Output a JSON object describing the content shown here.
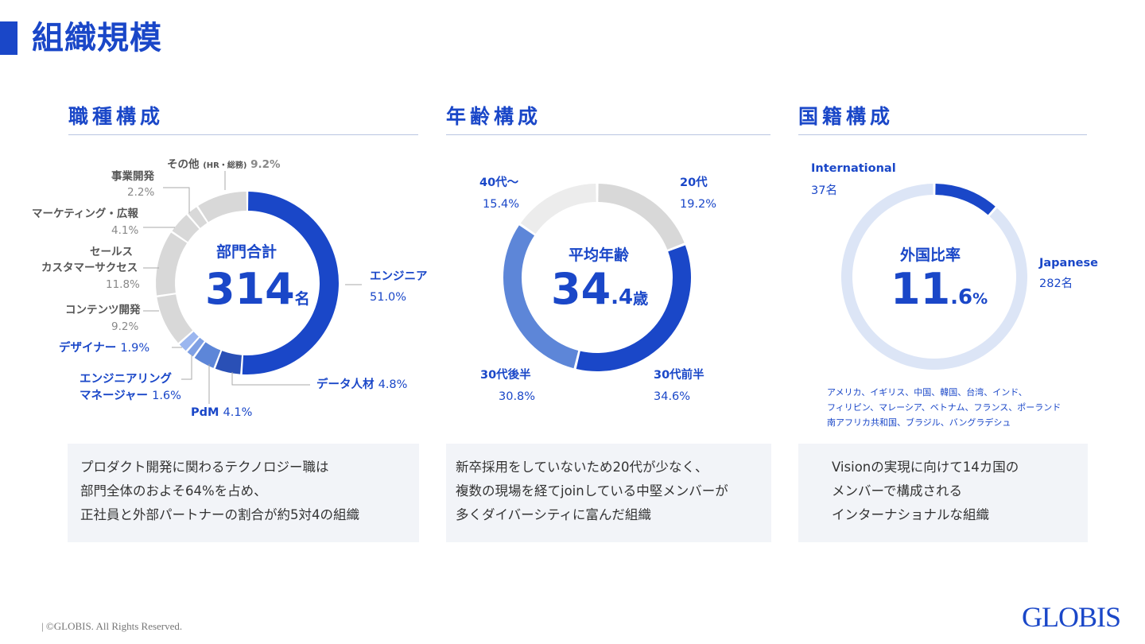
{
  "page": {
    "title": "組織規模",
    "copyright": "©GLOBIS. All Rights Reserved.",
    "logo": "GLOBIS"
  },
  "colors": {
    "primary": "#1a47c8",
    "dark_blue": "#2a50b6",
    "mid_blue": "#5d86d8",
    "light_blue": "#9bb6ef",
    "pale_blue": "#dce5f6",
    "gray": "#d8d8d8",
    "light_gray": "#ececec",
    "box_bg": "#f2f4f8"
  },
  "sections": {
    "job": {
      "heading": "職種構成",
      "center_label": "部門合計",
      "center_value": "314",
      "center_unit": "名",
      "description": [
        "プロダクト開発に関わるテクノロジー職は",
        "部門全体のおよそ64%を占め、",
        "正社員と外部パートナーの割合が約5対4の組織"
      ],
      "labels": {
        "other_name": "その他",
        "other_note": "(HR・総務)",
        "other_pct": "9.2%",
        "biz_name": "事業開発",
        "biz_pct": "2.2%",
        "mkt_name": "マーケティング・広報",
        "mkt_pct": "4.1%",
        "sales_name1": "セールス",
        "sales_name2": "カスタマーサクセス",
        "sales_pct": "11.8%",
        "content_name": "コンテンツ開発",
        "content_pct": "9.2%",
        "designer_name": "デザイナー",
        "designer_pct": "1.9%",
        "em_name1": "エンジニアリング",
        "em_name2": "マネージャー",
        "em_pct": "1.6%",
        "pdm_name": "PdM",
        "pdm_pct": "4.1%",
        "data_name": "データ人材",
        "data_pct": "4.8%",
        "eng_name": "エンジニア",
        "eng_pct": "51.0%"
      }
    },
    "age": {
      "heading": "年齢構成",
      "center_label": "平均年齢",
      "center_int": "34",
      "center_dec": ".4",
      "center_unit": "歳",
      "description": [
        "新卒採用をしていないため20代が少なく、",
        "複数の現場を経てjoinしている中堅メンバーが",
        "多くダイバーシティに富んだ組織"
      ],
      "labels": {
        "s20_name": "20代",
        "s20_pct": "19.2%",
        "s30e_name": "30代前半",
        "s30e_pct": "34.6%",
        "s30l_name": "30代後半",
        "s30l_pct": "30.8%",
        "s40_name": "40代〜",
        "s40_pct": "15.4%"
      }
    },
    "nationality": {
      "heading": "国籍構成",
      "center_label": "外国比率",
      "center_int": "11",
      "center_dec": ".6",
      "center_unit": "%",
      "description": [
        "Visionの実現に向けて14カ国の",
        "メンバーで構成される",
        "インターナショナルな組織"
      ],
      "countries": [
        "アメリカ、イギリス、中国、韓国、台湾、インド、",
        "フィリピン、マレーシア、ベトナム、フランス、ポーランド",
        "南アフリカ共和国、ブラジル、バングラデシュ"
      ],
      "labels": {
        "intl_name": "International",
        "intl_count": "37名",
        "jp_name": "Japanese",
        "jp_count": "282名"
      }
    }
  },
  "chart_data": [
    {
      "type": "pie",
      "title": "職種構成",
      "total_label": "部門合計 314名",
      "slices": [
        {
          "name": "エンジニア",
          "value": 51.0,
          "color": "#1a47c8"
        },
        {
          "name": "データ人材",
          "value": 4.8,
          "color": "#2a50b6"
        },
        {
          "name": "PdM",
          "value": 4.1,
          "color": "#5d86d8"
        },
        {
          "name": "エンジニアリングマネージャー",
          "value": 1.6,
          "color": "#7fa0e4"
        },
        {
          "name": "デザイナー",
          "value": 1.9,
          "color": "#9bb6ef"
        },
        {
          "name": "コンテンツ開発",
          "value": 9.2,
          "color": "#d8d8d8"
        },
        {
          "name": "セールス カスタマーサクセス",
          "value": 11.8,
          "color": "#d8d8d8"
        },
        {
          "name": "マーケティング・広報",
          "value": 4.1,
          "color": "#d8d8d8"
        },
        {
          "name": "事業開発",
          "value": 2.2,
          "color": "#d8d8d8"
        },
        {
          "name": "その他 (HR・総務)",
          "value": 9.2,
          "color": "#d8d8d8"
        }
      ]
    },
    {
      "type": "pie",
      "title": "年齢構成",
      "total_label": "平均年齢 34.4歳",
      "slices": [
        {
          "name": "20代",
          "value": 19.2,
          "color": "#d8d8d8"
        },
        {
          "name": "30代前半",
          "value": 34.6,
          "color": "#1a47c8"
        },
        {
          "name": "30代後半",
          "value": 30.8,
          "color": "#5d86d8"
        },
        {
          "name": "40代〜",
          "value": 15.4,
          "color": "#ececec"
        }
      ]
    },
    {
      "type": "pie",
      "title": "国籍構成",
      "total_label": "外国比率 11.6%",
      "slices": [
        {
          "name": "International",
          "value": 37,
          "color": "#1a47c8"
        },
        {
          "name": "Japanese",
          "value": 282,
          "color": "#dce5f6"
        }
      ]
    }
  ]
}
